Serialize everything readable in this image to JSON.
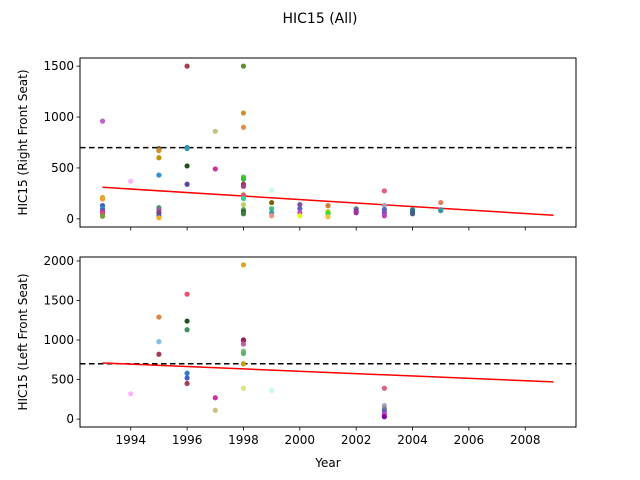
{
  "chart_data": [
    {
      "type": "scatter",
      "title": "HIC15 (All)",
      "ylabel": "HIC15 (Right Front Seat)",
      "xlabel": "",
      "xlim": [
        1992.2,
        2009.8
      ],
      "ylim": [
        -80,
        1580
      ],
      "xticks": [
        1994,
        1996,
        1998,
        2000,
        2002,
        2004,
        2006,
        2008
      ],
      "yticks": [
        0,
        500,
        1000,
        1500
      ],
      "threshold": 700,
      "trend": {
        "x": [
          1993,
          2009
        ],
        "y": [
          310,
          35
        ]
      },
      "points": [
        [
          1993,
          210,
          "#c8b030"
        ],
        [
          1993,
          195,
          "#f0a030"
        ],
        [
          1993,
          130,
          "#4060c0"
        ],
        [
          1993,
          100,
          "#3090c0"
        ],
        [
          1993,
          80,
          "#8040a0"
        ],
        [
          1993,
          60,
          "#d04090"
        ],
        [
          1993,
          40,
          "#c06060"
        ],
        [
          1993,
          25,
          "#70a040"
        ],
        [
          1993,
          960,
          "#c060d0"
        ],
        [
          1994,
          370,
          "#ffb0ff"
        ],
        [
          1995,
          690,
          "#606030"
        ],
        [
          1995,
          670,
          "#d09030"
        ],
        [
          1995,
          600,
          "#c09000"
        ],
        [
          1995,
          430,
          "#3090d0"
        ],
        [
          1995,
          110,
          "#40a060"
        ],
        [
          1995,
          90,
          "#9060a0"
        ],
        [
          1995,
          60,
          "#804080"
        ],
        [
          1995,
          30,
          "#5050c0"
        ],
        [
          1995,
          10,
          "#f0b020"
        ],
        [
          1996,
          1500,
          "#a04050"
        ],
        [
          1996,
          700,
          "#1070c0"
        ],
        [
          1996,
          690,
          "#30a0b0"
        ],
        [
          1996,
          520,
          "#205020"
        ],
        [
          1996,
          340,
          "#6040a0"
        ],
        [
          1997,
          860,
          "#c8c080"
        ],
        [
          1997,
          490,
          "#d03090"
        ],
        [
          1998,
          1500,
          "#609030"
        ],
        [
          1998,
          1040,
          "#d09030"
        ],
        [
          1998,
          900,
          "#e09040"
        ],
        [
          1998,
          410,
          "#40d040"
        ],
        [
          1998,
          390,
          "#30c030"
        ],
        [
          1998,
          340,
          "#a03060"
        ],
        [
          1998,
          320,
          "#a04080"
        ],
        [
          1998,
          240,
          "#d0c060"
        ],
        [
          1998,
          230,
          "#e05070"
        ],
        [
          1998,
          200,
          "#30d0a0"
        ],
        [
          1998,
          140,
          "#c0d060"
        ],
        [
          1998,
          90,
          "#50a050"
        ],
        [
          1998,
          70,
          "#306030"
        ],
        [
          1998,
          50,
          "#408040"
        ],
        [
          1999,
          280,
          "#c0ffe0"
        ],
        [
          1999,
          160,
          "#806000"
        ],
        [
          1999,
          100,
          "#40c080"
        ],
        [
          1999,
          60,
          "#30a0a0"
        ],
        [
          1999,
          30,
          "#f09080"
        ],
        [
          2000,
          140,
          "#8050a0"
        ],
        [
          2000,
          100,
          "#6060c0"
        ],
        [
          2000,
          60,
          "#c050c0"
        ],
        [
          2000,
          30,
          "#e0ff00"
        ],
        [
          2001,
          130,
          "#d08030"
        ],
        [
          2001,
          70,
          "#a0d000"
        ],
        [
          2001,
          50,
          "#30e030"
        ],
        [
          2001,
          20,
          "#f0c040"
        ],
        [
          2002,
          100,
          "#6080a0"
        ],
        [
          2002,
          80,
          "#8040a0"
        ],
        [
          2002,
          60,
          "#a030a0"
        ],
        [
          2003,
          275,
          "#e06080"
        ],
        [
          2003,
          130,
          "#a0a0c0"
        ],
        [
          2003,
          90,
          "#6060c0"
        ],
        [
          2003,
          60,
          "#8050b0"
        ],
        [
          2003,
          30,
          "#c040c0"
        ],
        [
          2004,
          90,
          "#308080"
        ],
        [
          2004,
          70,
          "#4060a0"
        ],
        [
          2004,
          50,
          "#406080"
        ],
        [
          2005,
          160,
          "#e08060"
        ],
        [
          2005,
          90,
          "#30a0c0"
        ],
        [
          2005,
          80,
          "#4090a0"
        ]
      ]
    },
    {
      "type": "scatter",
      "title": "",
      "ylabel": "HIC15 (Left Front Seat)",
      "xlabel": "Year",
      "xlim": [
        1992.2,
        2009.8
      ],
      "ylim": [
        -100,
        2050
      ],
      "xticks": [
        1994,
        1996,
        1998,
        2000,
        2002,
        2004,
        2006,
        2008
      ],
      "xtick_labels": [
        "1994",
        "1996",
        "1998",
        "2000",
        "2002",
        "2004",
        "2006",
        "2008"
      ],
      "yticks": [
        0,
        500,
        1000,
        1500,
        2000
      ],
      "threshold": 700,
      "trend": {
        "x": [
          1993,
          2009
        ],
        "y": [
          710,
          470
        ]
      },
      "points": [
        [
          1994,
          320,
          "#ffb0ff"
        ],
        [
          1995,
          1290,
          "#e08040"
        ],
        [
          1995,
          980,
          "#80c0e0"
        ],
        [
          1995,
          820,
          "#a04050"
        ],
        [
          1996,
          1580,
          "#f05070"
        ],
        [
          1996,
          1240,
          "#205020"
        ],
        [
          1996,
          1130,
          "#409060"
        ],
        [
          1996,
          580,
          "#3080c0"
        ],
        [
          1996,
          520,
          "#4060d0"
        ],
        [
          1996,
          450,
          "#a04050"
        ],
        [
          1997,
          270,
          "#d030a0"
        ],
        [
          1997,
          110,
          "#d0c080"
        ],
        [
          1998,
          1950,
          "#e0a020"
        ],
        [
          1998,
          1000,
          "#800030"
        ],
        [
          1998,
          990,
          "#a02060"
        ],
        [
          1998,
          950,
          "#c060a0"
        ],
        [
          1998,
          860,
          "#80c080"
        ],
        [
          1998,
          830,
          "#60b060"
        ],
        [
          1998,
          700,
          "#c0a000"
        ],
        [
          1998,
          390,
          "#e0e080"
        ],
        [
          1999,
          360,
          "#c0ffe0"
        ],
        [
          2003,
          390,
          "#e06080"
        ],
        [
          2003,
          170,
          "#a0a0c0"
        ],
        [
          2003,
          130,
          "#808080"
        ],
        [
          2003,
          100,
          "#6060c0"
        ],
        [
          2003,
          60,
          "#c040c0"
        ],
        [
          2003,
          30,
          "#8000a0"
        ]
      ]
    }
  ]
}
